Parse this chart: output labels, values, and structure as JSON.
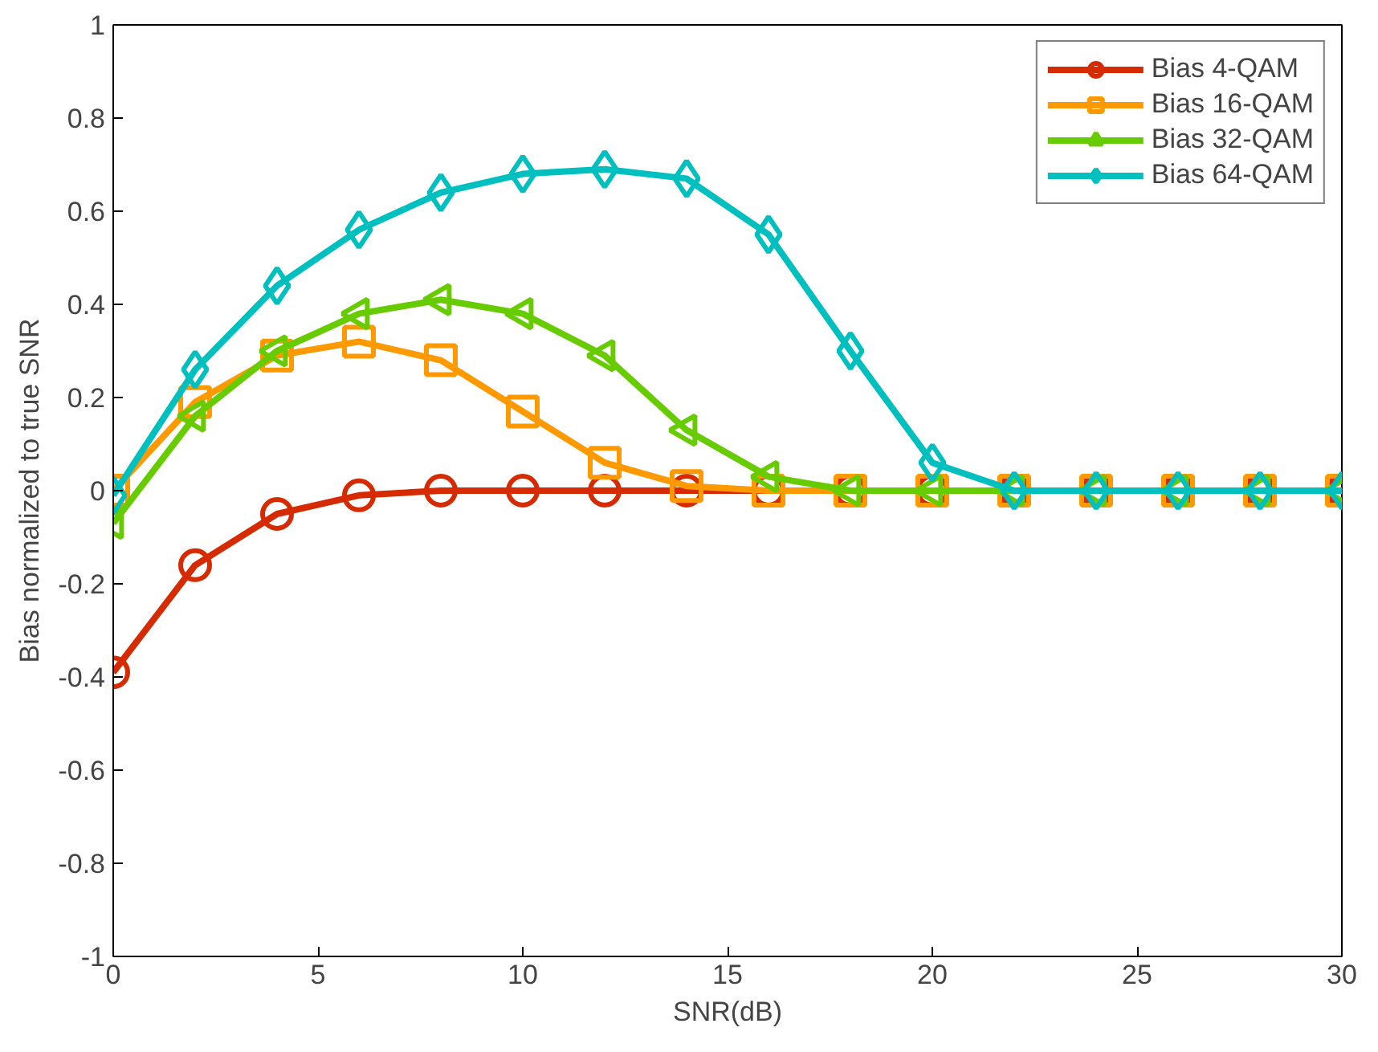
{
  "chart_data": {
    "type": "line",
    "xlabel": "SNR(dB)",
    "ylabel": "Bias normalized to true SNR",
    "x": [
      0,
      2,
      4,
      6,
      8,
      10,
      12,
      14,
      16,
      18,
      20,
      22,
      24,
      26,
      28,
      30
    ],
    "series": [
      {
        "name": "Bias 4-QAM",
        "color": "#d62a00",
        "marker": "circle",
        "values": [
          -0.39,
          -0.16,
          -0.05,
          -0.01,
          0,
          0,
          0,
          0,
          0,
          0,
          0,
          0,
          0,
          0,
          0,
          0
        ]
      },
      {
        "name": "Bias 16-QAM",
        "color": "#ff9900",
        "marker": "square",
        "values": [
          0.0,
          0.19,
          0.29,
          0.32,
          0.28,
          0.17,
          0.06,
          0.01,
          0,
          0,
          0,
          0,
          0,
          0,
          0,
          0
        ]
      },
      {
        "name": "Bias 32-QAM",
        "color": "#66cc00",
        "marker": "triangle",
        "values": [
          -0.07,
          0.16,
          0.3,
          0.38,
          0.41,
          0.38,
          0.29,
          0.13,
          0.03,
          0,
          0,
          0,
          0,
          0,
          0,
          0
        ]
      },
      {
        "name": "Bias 64-QAM",
        "color": "#00bfbf",
        "marker": "diamond",
        "values": [
          -0.01,
          0.26,
          0.44,
          0.56,
          0.64,
          0.68,
          0.69,
          0.67,
          0.55,
          0.3,
          0.06,
          0,
          0,
          0,
          0,
          0
        ]
      }
    ],
    "xlim": [
      0,
      30
    ],
    "xticks": [
      0,
      5,
      10,
      15,
      20,
      25,
      30
    ],
    "ylim": [
      -1,
      1
    ],
    "yticks": [
      -1,
      -0.8,
      -0.6,
      -0.4,
      -0.2,
      0,
      0.2,
      0.4,
      0.6,
      0.8,
      1
    ],
    "grid": false,
    "legend": "top right",
    "line_style": "solid"
  }
}
